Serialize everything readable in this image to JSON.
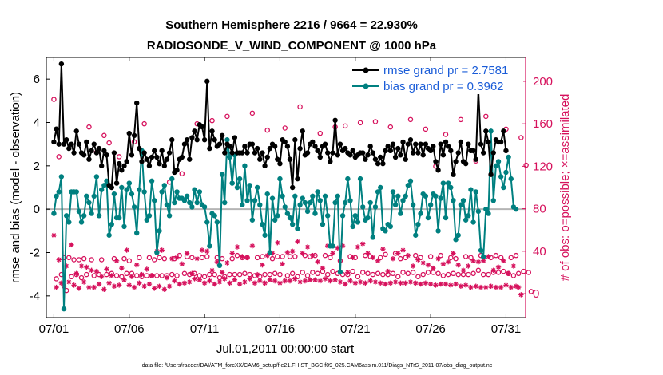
{
  "colors": {
    "rmse": "#000000",
    "bias": "#008080",
    "obs": "#d6115c",
    "zero_line": "#b4b4b4",
    "legend_text": "#1a5cd8"
  },
  "chart_data": {
    "type": "line",
    "title": "Southern Hemisphere 2216 / 9664 = 22.930%",
    "subtitle": "RADIOSONDE_V_WIND_COMPONENT @ 1000 hPa",
    "xlabel": "Jul.01,2011 00:00:00 start",
    "ylabel": "rmse and bias (model - observation)",
    "y2label": "# of obs: o=possible; ×=assimilated",
    "footnote": "data file: /Users/raeder/DAI/ATM_forcXX/CAM6_setup/f.e21.FHIST_BGC.f09_025.CAM6assim.011/Diags_NTrS_2011-07/obs_diag_output.nc",
    "xlim": [
      0.5,
      32.3
    ],
    "ylim": [
      -5,
      7
    ],
    "y2lim": [
      -22.5,
      222.5
    ],
    "x_ticks": [
      1,
      6,
      11,
      16,
      21,
      26,
      31
    ],
    "x_tick_labels": [
      "07/01",
      "07/06",
      "07/11",
      "07/16",
      "07/21",
      "07/26",
      "07/31"
    ],
    "y_ticks": [
      -4,
      -2,
      0,
      2,
      4,
      6
    ],
    "y2_ticks": [
      0,
      40,
      80,
      120,
      160,
      200
    ],
    "legend": {
      "position": "top-right",
      "entries": [
        "rmse grand pr = 2.7581",
        "bias grand pr = 0.3962"
      ]
    },
    "series": [
      {
        "name": "rmse grand pr = 2.7581",
        "axis": "left",
        "values": [
          3.1,
          3.7,
          3.0,
          6.7,
          3.0,
          3.2,
          2.8,
          3.0,
          2.6,
          3.6,
          3.0,
          2.6,
          2.5,
          3.1,
          2.3,
          2.7,
          3.0,
          2.6,
          2.8,
          2.0,
          2.7,
          2.5,
          1.1,
          1.0,
          2.6,
          1.2,
          2.1,
          1.8,
          2.0,
          2.2,
          3.5,
          2.5,
          3.4,
          4.9,
          2.8,
          2.2,
          2.6,
          2.3,
          2.0,
          2.4,
          2.7,
          2.4,
          2.1,
          2.7,
          2.0,
          2.3,
          2.6,
          3.2,
          1.7,
          1.8,
          2.3,
          2.4,
          3.0,
          3.2,
          2.3,
          3.3,
          3.6,
          3.2,
          3.9,
          3.8,
          3.2,
          5.9,
          2.8,
          3.6,
          3.2,
          2.9,
          3.0,
          3.4,
          2.6,
          3.0,
          2.9,
          2.6,
          3.3,
          2.6,
          2.6,
          2.6,
          2.9,
          2.6,
          3.0,
          3.0,
          2.6,
          2.8,
          2.3,
          2.6,
          2.0,
          2.4,
          2.8,
          3.0,
          2.9,
          2.3,
          2.1,
          3.2,
          3.1,
          2.9,
          2.3,
          1.0,
          3.2,
          1.4,
          2.8,
          3.6,
          2.5,
          2.6,
          3.0,
          3.1,
          2.9,
          2.7,
          2.4,
          2.9,
          3.0,
          2.6,
          2.2,
          2.6,
          4.1,
          2.5,
          3.0,
          2.7,
          2.8,
          2.6,
          2.5,
          2.7,
          2.4,
          2.5,
          2.6,
          2.6,
          2.3,
          2.5,
          2.9,
          2.6,
          2.3,
          2.1,
          2.4,
          2.1,
          2.7,
          2.9,
          2.7,
          3.0,
          2.4,
          2.8,
          2.5,
          3.1,
          2.3,
          3.0,
          3.2,
          2.6,
          3.0,
          2.6,
          3.0,
          2.5,
          3.0,
          2.8,
          2.7,
          2.9,
          2.2,
          1.8,
          3.0,
          2.5,
          3.1,
          2.9,
          2.7,
          1.6,
          2.2,
          2.6,
          3.1,
          2.2,
          2.1,
          3.0,
          2.7,
          2.7,
          2.3,
          5.5,
          3.0,
          2.6,
          3.6,
          3.1,
          1.6,
          2.6,
          3.2,
          3.1,
          3.1,
          3.6,
          2.7
        ],
        "marker": "filled-circle"
      },
      {
        "name": "bias grand pr = 0.3962",
        "axis": "left",
        "values": [
          -0.2,
          0.6,
          0.8,
          1.5,
          -4.6,
          -0.3,
          -0.6,
          0.8,
          0.8,
          0.8,
          -0.1,
          -0.6,
          -0.3,
          0.6,
          0.3,
          -0.2,
          0.6,
          1.5,
          -0.3,
          0.9,
          1.1,
          1.3,
          -1.2,
          -0.7,
          0.7,
          -0.4,
          -0.4,
          1.0,
          -0.8,
          0.9,
          1.2,
          0.7,
          0.1,
          -1.1,
          0.9,
          2.7,
          0.8,
          -0.5,
          -0.3,
          1.3,
          0.4,
          -2.0,
          -1.0,
          0.8,
          1.1,
          0.2,
          -0.3,
          1.4,
          0.3,
          0.8,
          0.5,
          0.5,
          0.4,
          0.6,
          0.3,
          0.1,
          0.9,
          0.3,
          0.8,
          0.2,
          0.1,
          -0.6,
          -1.7,
          -0.2,
          -0.3,
          -0.6,
          -2.6,
          1.6,
          0.3,
          3.2,
          2.4,
          1.2,
          2.5,
          1.0,
          1.4,
          0.2,
          2.0,
          0.4,
          1.1,
          -0.5,
          0.4,
          1.0,
          0.2,
          -0.7,
          -1.2,
          0.7,
          -2.0,
          0.5,
          -0.5,
          -0.3,
          1.4,
          0.6,
          0.1,
          -0.2,
          -0.4,
          -0.7,
          0.6,
          -0.9,
          0.2,
          0.5,
          0.3,
          -0.1,
          0.3,
          0.6,
          -0.2,
          0.8,
          0.4,
          -0.7,
          0.6,
          -0.3,
          -1.7,
          -1.7,
          0.3,
          0.6,
          -2.9,
          -0.3,
          0.3,
          1.4,
          0.4,
          -0.8,
          -0.3,
          -0.6,
          1.4,
          0.1,
          -0.5,
          -0.4,
          0.3,
          -1.3,
          0.1,
          0.8,
          1.0,
          -0.9,
          -1.0,
          -0.7,
          -0.8,
          0.8,
          0.2,
          0.6,
          -0.2,
          0.4,
          0.6,
          1.1,
          1.3,
          0.2,
          -1.2,
          -0.7,
          -0.2,
          0.7,
          0.6,
          -0.4,
          0.2,
          0.7,
          0.6,
          -1.0,
          0.5,
          1.2,
          -0.4,
          1.2,
          1.0,
          0.4,
          -1.4,
          -1.2,
          0.2,
          0.4,
          -0.5,
          -0.3,
          0.9,
          -0.6,
          0.8,
          -0.1,
          -1.9,
          -2.2,
          0.0,
          -0.2,
          3.6,
          0.4,
          2.0,
          2.2,
          1.5,
          1.0,
          1.7,
          2.4,
          1.4,
          0.1,
          0.0
        ],
        "marker": "filled-circle"
      },
      {
        "name": "obs possible",
        "axis": "right",
        "values": [
          183,
          14,
          129,
          18,
          34,
          3,
          34,
          16,
          32,
          18,
          32,
          15,
          33,
          18,
          157,
          32,
          17,
          133,
          18,
          32,
          149,
          18,
          142,
          19,
          33,
          17,
          129,
          16,
          33,
          19,
          31,
          19,
          143,
          17,
          34,
          16,
          160,
          17,
          34,
          17,
          32,
          17,
          34,
          17,
          33,
          17,
          105,
          18,
          33,
          17,
          36,
          113,
          19,
          35,
          18,
          34,
          19,
          160,
          17,
          34,
          16,
          35,
          18,
          163,
          18,
          34,
          15,
          33,
          16,
          167,
          18,
          33,
          18,
          36,
          18,
          34,
          19,
          34,
          18,
          170,
          17,
          34,
          16,
          35,
          18,
          154,
          18,
          33,
          19,
          35,
          18,
          35,
          156,
          17,
          35,
          19,
          35,
          16,
          176,
          20,
          36,
          17,
          35,
          20,
          36,
          19,
          151,
          21,
          36,
          18,
          34,
          21,
          157,
          19,
          31,
          18,
          158,
          18,
          35,
          21,
          34,
          16,
          161,
          20,
          36,
          19,
          35,
          18,
          162,
          19,
          34,
          18,
          37,
          18,
          157,
          19,
          38,
          16,
          33,
          20,
          34,
          19,
          164,
          20,
          36,
          16,
          34,
          18,
          155,
          20,
          35,
          20,
          120,
          19,
          36,
          17,
          150,
          18,
          34,
          19,
          33,
          18,
          164,
          18,
          35,
          18,
          34,
          19,
          125,
          22,
          36,
          18,
          167,
          18,
          34,
          20,
          36,
          20,
          34,
          21,
          155,
          19,
          34,
          17,
          36,
          19,
          147,
          21,
          121,
          20,
          2
        ],
        "marker": "open-circle"
      },
      {
        "name": "obs assimilated",
        "axis": "right",
        "values": [
          55,
          6,
          32,
          10,
          7,
          26,
          11,
          46,
          8,
          19,
          5,
          26,
          11,
          25,
          6,
          22,
          6,
          21,
          9,
          16,
          4,
          23,
          10,
          17,
          7,
          31,
          8,
          24,
          13,
          41,
          8,
          16,
          6,
          27,
          10,
          18,
          7,
          23,
          9,
          17,
          5,
          40,
          7,
          41,
          4,
          15,
          7,
          33,
          12,
          34,
          9,
          28,
          10,
          38,
          11,
          19,
          14,
          33,
          13,
          41,
          10,
          40,
          12,
          22,
          9,
          30,
          11,
          20,
          14,
          29,
          10,
          38,
          13,
          44,
          9,
          35,
          11,
          34,
          14,
          45,
          10,
          18,
          12,
          27,
          10,
          36,
          13,
          38,
          12,
          48,
          10,
          28,
          12,
          39,
          12,
          40,
          14,
          49,
          11,
          38,
          12,
          44,
          13,
          36,
          13,
          30,
          12,
          24,
          14,
          45,
          12,
          38,
          13,
          43,
          11,
          45,
          9,
          20,
          12,
          34,
          10,
          44,
          11,
          47,
          10,
          38,
          12,
          34,
          11,
          31,
          10,
          42,
          9,
          21,
          10,
          33,
          11,
          38,
          10,
          41,
          10,
          36,
          11,
          26,
          10,
          32,
          9,
          29,
          10,
          27,
          9,
          24,
          8,
          33,
          9,
          28,
          9,
          30,
          8,
          38,
          9,
          27,
          7,
          22,
          8,
          26,
          6,
          31,
          7,
          30,
          6,
          31,
          6,
          35,
          7,
          22,
          6,
          25,
          6,
          31,
          8,
          19,
          6,
          26,
          7,
          6,
          -1
        ],
        "marker": "asterisk"
      }
    ]
  }
}
